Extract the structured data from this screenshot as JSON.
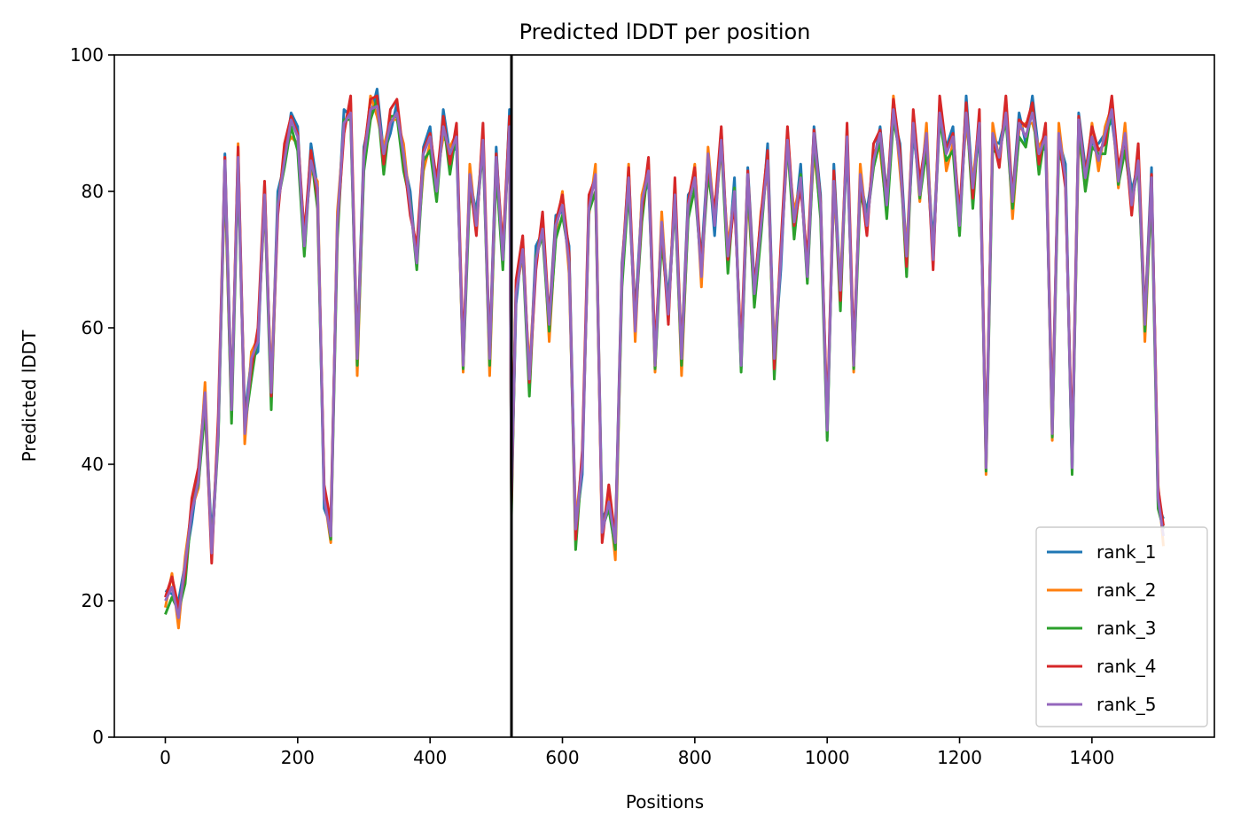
{
  "chart_data": {
    "type": "line",
    "title": "Predicted lDDT per position",
    "xlabel": "Positions",
    "ylabel": "Predicted lDDT",
    "xlim": [
      -77,
      1585
    ],
    "ylim": [
      0,
      100
    ],
    "xticks": [
      0,
      200,
      400,
      600,
      800,
      1000,
      1200,
      1400
    ],
    "yticks": [
      0,
      20,
      40,
      60,
      80,
      100
    ],
    "grid": false,
    "legend_position": "lower right",
    "vline_x": 523,
    "vline_color": "#000000",
    "series": [
      {
        "name": "rank_1",
        "color": "#1f77b4"
      },
      {
        "name": "rank_2",
        "color": "#ff7f0e"
      },
      {
        "name": "rank_3",
        "color": "#2ca02c"
      },
      {
        "name": "rank_4",
        "color": "#d62728"
      },
      {
        "name": "rank_5",
        "color": "#9467bd"
      }
    ],
    "x": [
      0,
      10,
      20,
      30,
      40,
      50,
      60,
      70,
      80,
      90,
      100,
      110,
      120,
      130,
      140,
      150,
      160,
      170,
      180,
      190,
      200,
      210,
      220,
      230,
      240,
      250,
      260,
      270,
      280,
      290,
      300,
      310,
      320,
      330,
      340,
      350,
      360,
      370,
      380,
      390,
      400,
      410,
      420,
      430,
      440,
      450,
      460,
      470,
      480,
      490,
      500,
      510,
      520,
      523,
      530,
      540,
      550,
      560,
      570,
      580,
      590,
      600,
      610,
      620,
      630,
      640,
      650,
      660,
      670,
      680,
      690,
      700,
      710,
      720,
      730,
      740,
      750,
      760,
      770,
      780,
      790,
      800,
      810,
      820,
      830,
      840,
      850,
      860,
      870,
      880,
      890,
      900,
      910,
      920,
      930,
      940,
      950,
      960,
      970,
      980,
      990,
      1000,
      1010,
      1020,
      1030,
      1040,
      1050,
      1060,
      1070,
      1080,
      1090,
      1100,
      1110,
      1120,
      1130,
      1140,
      1150,
      1160,
      1170,
      1180,
      1190,
      1200,
      1210,
      1220,
      1230,
      1240,
      1250,
      1260,
      1270,
      1280,
      1290,
      1300,
      1310,
      1320,
      1330,
      1340,
      1350,
      1360,
      1370,
      1380,
      1390,
      1400,
      1410,
      1420,
      1430,
      1440,
      1450,
      1460,
      1470,
      1480,
      1490,
      1500,
      1508
    ],
    "base": [
      20,
      22,
      18,
      25,
      33,
      38,
      50,
      27,
      45,
      84,
      48,
      85,
      45,
      55,
      58,
      80,
      50,
      78,
      85,
      90,
      88,
      72,
      85,
      80,
      35,
      30,
      75,
      90,
      92,
      55,
      85,
      92,
      93,
      85,
      90,
      92,
      85,
      78,
      70,
      85,
      88,
      80,
      90,
      85,
      88,
      55,
      82,
      75,
      88,
      55,
      85,
      70,
      90,
      35,
      65,
      72,
      52,
      70,
      75,
      60,
      75,
      78,
      70,
      30,
      40,
      78,
      82,
      30,
      35,
      28,
      68,
      82,
      60,
      78,
      83,
      55,
      75,
      62,
      80,
      55,
      78,
      82,
      68,
      85,
      75,
      88,
      70,
      80,
      55,
      82,
      65,
      75,
      85,
      55,
      70,
      88,
      75,
      82,
      68,
      88,
      78,
      45,
      82,
      65,
      88,
      55,
      82,
      75,
      85,
      88,
      78,
      92,
      85,
      70,
      90,
      80,
      88,
      70,
      92,
      85,
      88,
      75,
      92,
      80,
      90,
      40,
      88,
      85,
      92,
      78,
      90,
      88,
      92,
      85,
      88,
      45,
      88,
      82,
      40,
      90,
      82,
      88,
      85,
      88,
      92,
      82,
      88,
      78,
      85,
      60,
      82,
      35,
      30
    ],
    "offsets": [
      [
        1.5,
        -1,
        2,
        0.5,
        -1.5,
        1,
        -0.5,
        2,
        -1,
        1.5
      ],
      [
        -1,
        2,
        -2,
        1.5,
        0.5,
        -1.5,
        2,
        -0.5,
        1,
        -2
      ],
      [
        -2,
        -1.5,
        0.5,
        -2.5,
        1,
        -1,
        -2,
        0.5,
        -1.5,
        -0.5
      ],
      [
        0.5,
        1.5,
        1,
        -1,
        2,
        1.5,
        0,
        -1.5,
        2,
        1
      ],
      [
        0,
        0,
        -0.5,
        0.5,
        0,
        -0.5,
        0.5,
        0,
        -0.5,
        0.5
      ]
    ]
  }
}
